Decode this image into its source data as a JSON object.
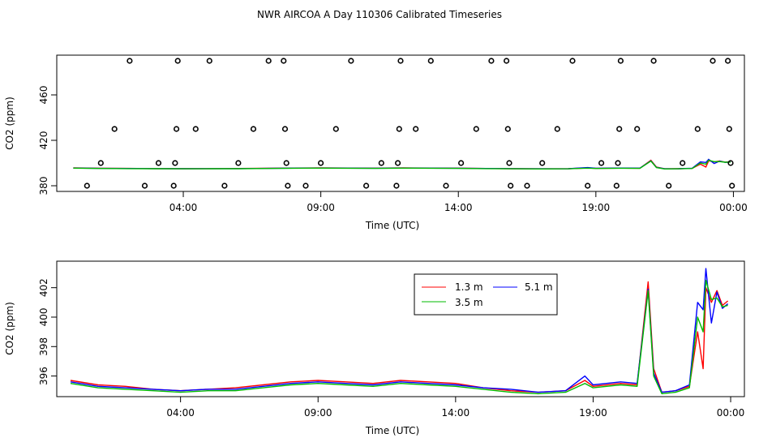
{
  "title": "NWR AIRCOA A  Day 110306  Calibrated Timeseries",
  "chart_data": [
    {
      "type": "scatter+line",
      "name": "top-panel",
      "xlabel": "Time (UTC)",
      "ylabel": "CO2 (ppm)",
      "x_unit": "hours since 00:00 UTC",
      "xlim": [
        -0.6,
        24.4
      ],
      "ylim": [
        375,
        495
      ],
      "x_ticks": [
        4,
        9,
        14,
        19,
        24
      ],
      "x_tick_labels": [
        "04:00",
        "09:00",
        "14:00",
        "19:00",
        "00:00"
      ],
      "y_ticks": [
        380,
        420,
        460
      ],
      "y_tick_labels": [
        "380",
        "420",
        "460"
      ],
      "points": [
        {
          "x": 0.5,
          "y": 380
        },
        {
          "x": 1.0,
          "y": 400
        },
        {
          "x": 1.5,
          "y": 430
        },
        {
          "x": 2.05,
          "y": 490
        },
        {
          "x": 2.6,
          "y": 380
        },
        {
          "x": 3.1,
          "y": 400
        },
        {
          "x": 3.65,
          "y": 380
        },
        {
          "x": 3.7,
          "y": 400
        },
        {
          "x": 3.75,
          "y": 430
        },
        {
          "x": 3.8,
          "y": 490
        },
        {
          "x": 4.45,
          "y": 430
        },
        {
          "x": 4.95,
          "y": 490
        },
        {
          "x": 5.5,
          "y": 380
        },
        {
          "x": 6.0,
          "y": 400
        },
        {
          "x": 6.55,
          "y": 430
        },
        {
          "x": 7.1,
          "y": 490
        },
        {
          "x": 7.65,
          "y": 490
        },
        {
          "x": 7.7,
          "y": 430
        },
        {
          "x": 7.75,
          "y": 400
        },
        {
          "x": 7.8,
          "y": 380
        },
        {
          "x": 8.45,
          "y": 380
        },
        {
          "x": 9.0,
          "y": 400
        },
        {
          "x": 9.55,
          "y": 430
        },
        {
          "x": 10.1,
          "y": 490
        },
        {
          "x": 10.65,
          "y": 380
        },
        {
          "x": 11.2,
          "y": 400
        },
        {
          "x": 11.75,
          "y": 380
        },
        {
          "x": 11.8,
          "y": 400
        },
        {
          "x": 11.85,
          "y": 430
        },
        {
          "x": 11.9,
          "y": 490
        },
        {
          "x": 12.45,
          "y": 430
        },
        {
          "x": 13.0,
          "y": 490
        },
        {
          "x": 13.55,
          "y": 380
        },
        {
          "x": 14.1,
          "y": 400
        },
        {
          "x": 14.65,
          "y": 430
        },
        {
          "x": 15.2,
          "y": 490
        },
        {
          "x": 15.75,
          "y": 490
        },
        {
          "x": 15.8,
          "y": 430
        },
        {
          "x": 15.85,
          "y": 400
        },
        {
          "x": 15.9,
          "y": 380
        },
        {
          "x": 16.5,
          "y": 380
        },
        {
          "x": 17.05,
          "y": 400
        },
        {
          "x": 17.6,
          "y": 430
        },
        {
          "x": 18.15,
          "y": 490
        },
        {
          "x": 18.7,
          "y": 380
        },
        {
          "x": 19.2,
          "y": 400
        },
        {
          "x": 19.75,
          "y": 380
        },
        {
          "x": 19.8,
          "y": 400
        },
        {
          "x": 19.85,
          "y": 430
        },
        {
          "x": 19.9,
          "y": 490
        },
        {
          "x": 20.5,
          "y": 430
        },
        {
          "x": 21.1,
          "y": 490
        },
        {
          "x": 21.65,
          "y": 380
        },
        {
          "x": 22.15,
          "y": 400
        },
        {
          "x": 22.7,
          "y": 430
        },
        {
          "x": 23.25,
          "y": 490
        },
        {
          "x": 23.8,
          "y": 490
        },
        {
          "x": 23.85,
          "y": 430
        },
        {
          "x": 23.9,
          "y": 400
        },
        {
          "x": 23.95,
          "y": 380
        }
      ]
    },
    {
      "type": "line",
      "name": "bottom-panel",
      "xlabel": "Time (UTC)",
      "ylabel": "CO2 (ppm)",
      "x_unit": "hours since 00:00 UTC",
      "xlim": [
        -0.5,
        24.5
      ],
      "ylim": [
        394.6,
        403.8
      ],
      "x_ticks": [
        4,
        9,
        14,
        19,
        24
      ],
      "x_tick_labels": [
        "04:00",
        "09:00",
        "14:00",
        "19:00",
        "00:00"
      ],
      "y_ticks": [
        396,
        398,
        400,
        402
      ],
      "y_tick_labels": [
        "396",
        "398",
        "400",
        "402"
      ],
      "legend": {
        "placement": "top-right",
        "entries": [
          {
            "label": "1.3 m",
            "color": "#ff0000"
          },
          {
            "label": "5.1 m",
            "color": "#0000ff"
          },
          {
            "label": "3.5 m",
            "color": "#00bb00"
          }
        ]
      },
      "series": [
        {
          "name": "1.3 m",
          "color": "#ff0000",
          "x": [
            0,
            1,
            2,
            3,
            4,
            5,
            6,
            7,
            8,
            9,
            10,
            11,
            12,
            13,
            14,
            15,
            16,
            17,
            18,
            18.7,
            19,
            20,
            20.6,
            21.0,
            21.2,
            21.5,
            22.0,
            22.5,
            22.8,
            23.0,
            23.1,
            23.3,
            23.5,
            23.7,
            23.9
          ],
          "y": [
            395.7,
            395.4,
            395.3,
            395.1,
            395.0,
            395.1,
            395.2,
            395.4,
            395.6,
            395.7,
            395.6,
            395.5,
            395.7,
            395.6,
            395.5,
            395.2,
            395.0,
            394.9,
            395.0,
            395.7,
            395.3,
            395.5,
            395.4,
            402.4,
            396.5,
            394.9,
            395.0,
            395.3,
            399.0,
            396.5,
            402.0,
            401.0,
            401.8,
            400.8,
            401.1
          ]
        },
        {
          "name": "5.1 m",
          "color": "#0000ff",
          "x": [
            0,
            1,
            2,
            3,
            4,
            5,
            6,
            7,
            8,
            9,
            10,
            11,
            12,
            13,
            14,
            15,
            16,
            17,
            18,
            18.7,
            19,
            20,
            20.6,
            21.0,
            21.2,
            21.5,
            22.0,
            22.5,
            22.8,
            23.0,
            23.1,
            23.3,
            23.5,
            23.7,
            23.9
          ],
          "y": [
            395.6,
            395.3,
            395.2,
            395.1,
            395.0,
            395.1,
            395.1,
            395.3,
            395.5,
            395.6,
            395.5,
            395.4,
            395.6,
            395.5,
            395.4,
            395.2,
            395.1,
            394.9,
            395.0,
            396.0,
            395.4,
            395.6,
            395.5,
            401.9,
            396.2,
            394.9,
            395.0,
            395.4,
            401.0,
            400.5,
            403.3,
            399.6,
            401.7,
            400.6,
            400.9
          ]
        },
        {
          "name": "3.5 m",
          "color": "#00bb00",
          "x": [
            0,
            1,
            2,
            3,
            4,
            5,
            6,
            7,
            8,
            9,
            10,
            11,
            12,
            13,
            14,
            15,
            16,
            17,
            18,
            18.7,
            19,
            20,
            20.6,
            21.0,
            21.2,
            21.5,
            22.0,
            22.5,
            22.8,
            23.0,
            23.1,
            23.3,
            23.5,
            23.7,
            23.9
          ],
          "y": [
            395.5,
            395.2,
            395.1,
            395.0,
            394.9,
            395.0,
            395.0,
            395.2,
            395.4,
            395.5,
            395.4,
            395.3,
            395.5,
            395.4,
            395.3,
            395.1,
            394.9,
            394.8,
            394.9,
            395.5,
            395.2,
            395.4,
            395.3,
            401.8,
            396.0,
            394.8,
            394.9,
            395.2,
            400.0,
            399.0,
            402.5,
            401.2,
            401.3,
            400.7,
            400.8
          ]
        }
      ]
    }
  ]
}
